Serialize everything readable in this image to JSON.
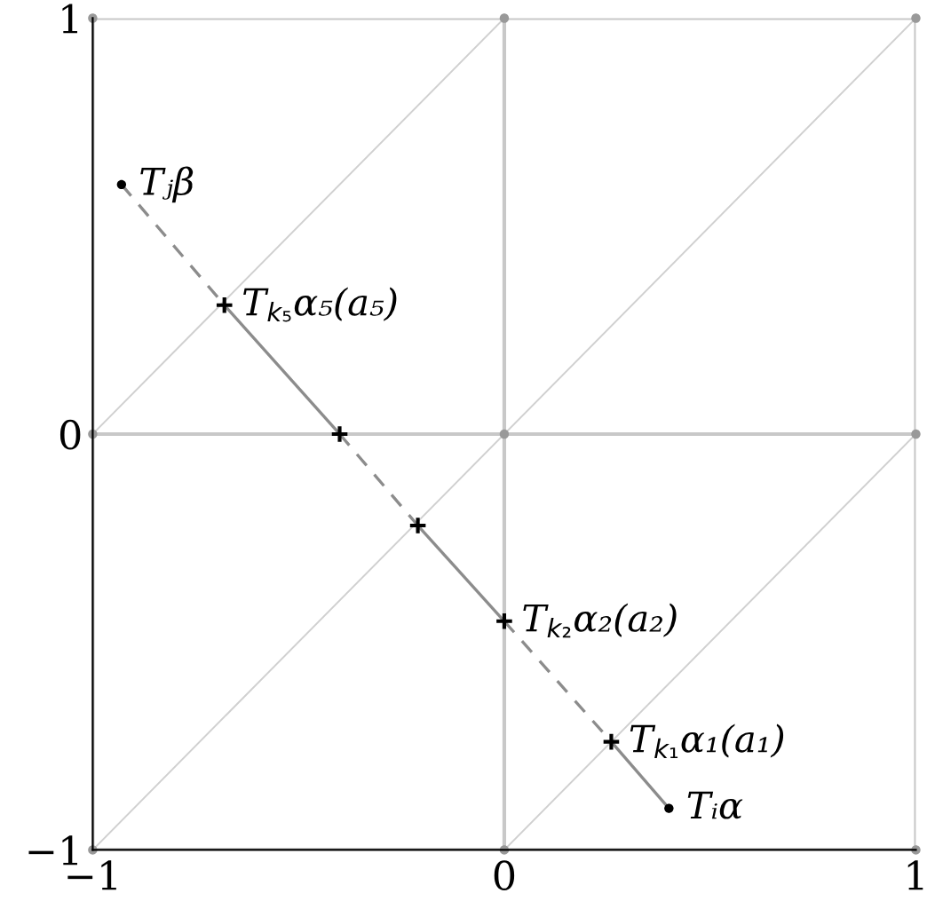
{
  "chart_data": {
    "type": "line",
    "xlim": [
      -1,
      1
    ],
    "ylim": [
      -1,
      1
    ],
    "xticks": [
      {
        "value": -1,
        "label": "−1"
      },
      0,
      1
    ],
    "yticks": [
      {
        "value": -1,
        "label": "−1"
      },
      0,
      1
    ],
    "grid": true,
    "marker": "none",
    "series": [
      {
        "color": "#d0d0d0",
        "x": [
          -1,
          0
        ],
        "values": [
          0,
          1
        ]
      },
      {
        "color": "#d0d0d0",
        "x": [
          -1,
          1
        ],
        "values": [
          -1,
          1
        ]
      },
      {
        "color": "#d0d0d0",
        "x": [
          0,
          1
        ],
        "values": [
          -1,
          0
        ]
      },
      {
        "type": "scatter",
        "marker": "circle",
        "color": "#999999",
        "x": [
          -1,
          0,
          1,
          -1,
          0,
          1,
          -1,
          0,
          1
        ],
        "values": [
          1,
          1,
          1,
          0,
          0,
          0,
          -1,
          -1,
          -1
        ]
      },
      {
        "line_style": "dashed",
        "color": "#8c8c8c",
        "x": [
          -0.93,
          -0.68
        ],
        "values": [
          0.6,
          0.31
        ]
      },
      {
        "line_style": "solid",
        "color": "#8c8c8c",
        "x": [
          -0.68,
          -0.4
        ],
        "values": [
          0.31,
          0.0
        ]
      },
      {
        "line_style": "dashed",
        "color": "#8c8c8c",
        "x": [
          -0.4,
          -0.21
        ],
        "values": [
          0.0,
          -0.22
        ]
      },
      {
        "line_style": "solid",
        "color": "#8c8c8c",
        "x": [
          -0.21,
          0.0
        ],
        "values": [
          -0.22,
          -0.45
        ]
      },
      {
        "line_style": "dashed",
        "color": "#8c8c8c",
        "x": [
          0.0,
          0.26
        ],
        "values": [
          -0.45,
          -0.74
        ]
      },
      {
        "line_style": "solid",
        "color": "#8c8c8c",
        "x": [
          0.26,
          0.4
        ],
        "values": [
          -0.74,
          -0.9
        ]
      },
      {
        "type": "scatter",
        "marker": "circle",
        "color": "#000000",
        "x": [
          -0.93,
          0.4
        ],
        "values": [
          0.6,
          -0.9
        ]
      },
      {
        "type": "scatter",
        "marker": "cross",
        "color": "#000000",
        "x": [
          -0.68,
          -0.4,
          -0.21,
          0.0,
          0.26
        ],
        "values": [
          0.31,
          0.0,
          -0.22,
          -0.45,
          -0.74
        ]
      }
    ],
    "annotations": [
      {
        "text": "Tⱼβ",
        "x": -0.93,
        "y": 0.6
      },
      {
        "text": "T$_{k₅}$α₅(a₅)",
        "x": -0.68,
        "y": 0.31
      },
      {
        "text": "T$_{k₂}$α₂(a₂)",
        "x": 0.0,
        "y": -0.45
      },
      {
        "text": "T$_{k₁}$α₁(a₁)",
        "x": 0.26,
        "y": -0.74
      },
      {
        "text": "Tᵢα",
        "x": 0.4,
        "y": -0.9
      }
    ]
  }
}
